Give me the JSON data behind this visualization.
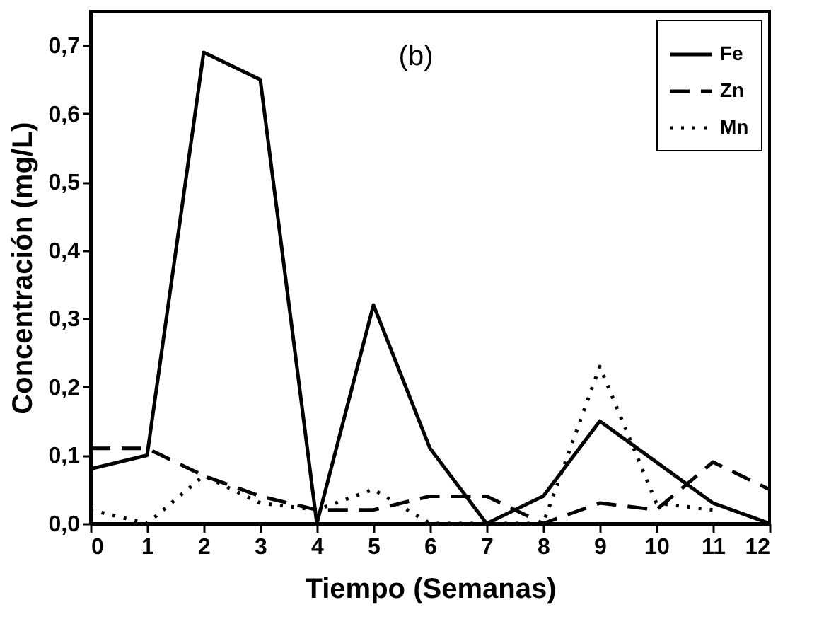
{
  "chart_data": {
    "type": "line",
    "xlabel": "Tiempo (Semanas)",
    "ylabel": "Concentración (mg/L)",
    "annotations": [
      "(b)"
    ],
    "x": [
      0,
      1,
      2,
      3,
      4,
      5,
      6,
      7,
      8,
      9,
      10,
      11,
      12
    ],
    "series": [
      {
        "name": "Fe",
        "color": "#000000",
        "line_style": "solid",
        "values": [
          0.08,
          0.1,
          0.69,
          0.65,
          0,
          0.32,
          0.11,
          0,
          0.04,
          0.15,
          0.09,
          0.03,
          0
        ]
      },
      {
        "name": "Zn",
        "color": "#000000",
        "line_style": "dashed",
        "values": [
          0.11,
          0.11,
          0.07,
          0.04,
          0.02,
          0.02,
          0.04,
          0.04,
          0,
          0.03,
          0.02,
          0.09,
          0.05
        ]
      },
      {
        "name": "Mn",
        "color": "#000000",
        "line_style": "dotted",
        "values": [
          0.02,
          0,
          0.07,
          0.03,
          0.02,
          0.05,
          0,
          0,
          0,
          0.23,
          0.03,
          0.02,
          null
        ]
      }
    ],
    "xlim": [
      0,
      12
    ],
    "ylim": [
      0,
      0.75
    ],
    "xticks": [
      0,
      1,
      2,
      3,
      4,
      5,
      6,
      7,
      8,
      9,
      10,
      11,
      12
    ],
    "yticks": [
      {
        "value": 0,
        "label": "0,0"
      },
      {
        "value": 0.1,
        "label": "0,1"
      },
      {
        "value": 0.2,
        "label": "0,2"
      },
      {
        "value": 0.3,
        "label": "0,3"
      },
      {
        "value": 0.4,
        "label": "0,4"
      },
      {
        "value": 0.5,
        "label": "0,5"
      },
      {
        "value": 0.6,
        "label": "0,6"
      },
      {
        "value": 0.7,
        "label": "0,7"
      }
    ],
    "grid": false,
    "legend": "top right",
    "marker": "none"
  }
}
